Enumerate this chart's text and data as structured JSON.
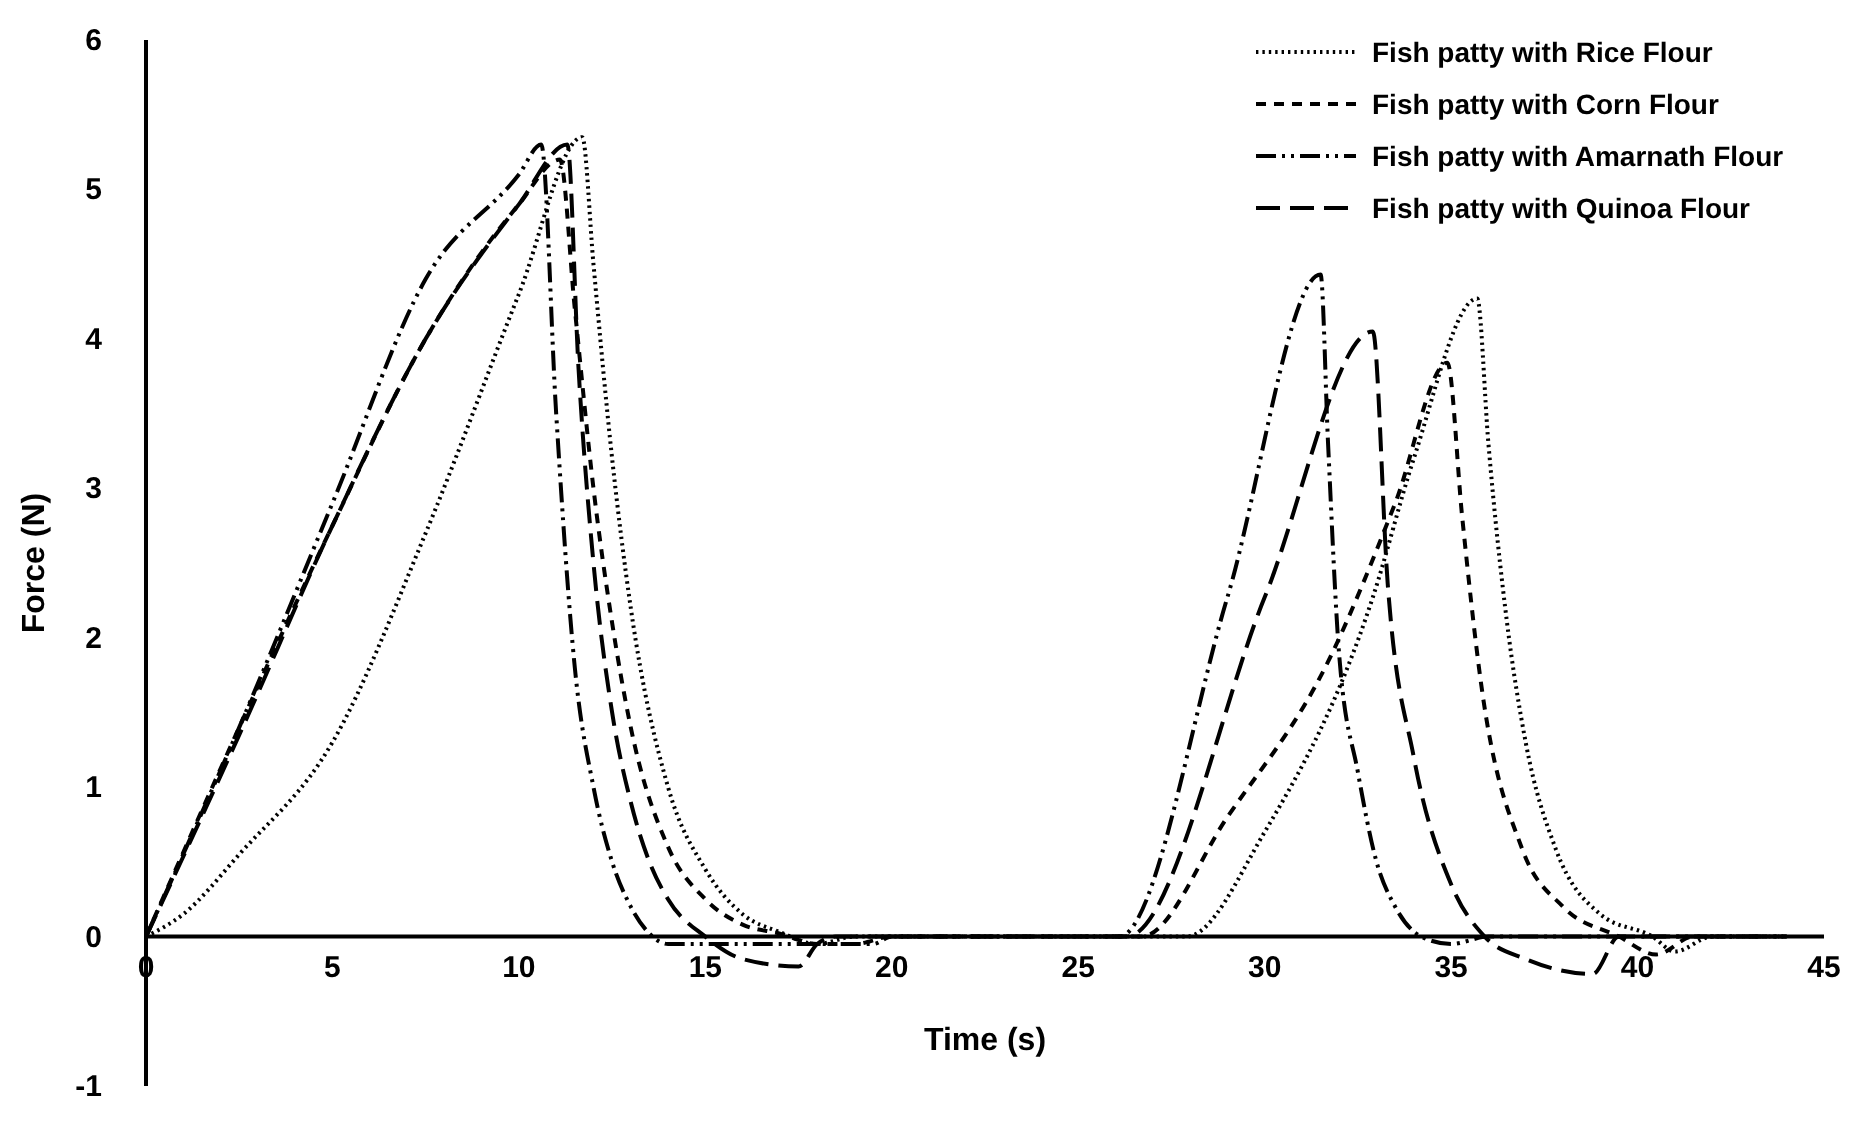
{
  "chart_data": {
    "type": "line",
    "xlabel": "Time (s)",
    "ylabel": "Force (N)",
    "xlim": [
      0,
      45
    ],
    "ylim": [
      -1,
      6
    ],
    "xticks": [
      0,
      5,
      10,
      15,
      20,
      25,
      30,
      35,
      40,
      45
    ],
    "yticks": [
      -1,
      0,
      1,
      2,
      3,
      4,
      5,
      6
    ],
    "grid": false,
    "legend": "top right",
    "series": [
      {
        "name": "Fish patty with Rice Flour",
        "color": "#000000",
        "line_style": "dotted",
        "x": [
          0,
          1,
          2.5,
          5,
          7.5,
          10,
          11.7,
          12,
          12.5,
          13,
          14,
          15,
          16,
          17,
          18,
          19,
          26,
          27.9,
          30,
          32.9,
          34,
          35.7,
          36,
          36.5,
          37,
          37.8,
          39,
          40.4,
          41,
          42,
          44
        ],
        "values": [
          0,
          0.15,
          0.55,
          1.3,
          2.7,
          4.3,
          5.35,
          4.5,
          3.2,
          2.2,
          1,
          0.45,
          0.15,
          0.03,
          -0.05,
          0,
          0,
          0,
          0.7,
          2.27,
          3.2,
          4.27,
          3.3,
          2.1,
          1.3,
          0.59,
          0.15,
          0,
          -0.1,
          0,
          0
        ]
      },
      {
        "name": "Fish patty with Corn Flour",
        "color": "#000000",
        "line_style": "dashed",
        "x": [
          0,
          2.5,
          5,
          7.5,
          10,
          11.1,
          11.5,
          12,
          12.5,
          13,
          14,
          15,
          16,
          17,
          18,
          19,
          20,
          26,
          26.7,
          29,
          31.7,
          33.5,
          34.9,
          35.3,
          35.8,
          36.9,
          38,
          39.5,
          40.5,
          41.5,
          44
        ],
        "values": [
          0,
          1.4,
          2.75,
          4,
          4.9,
          5.2,
          4.2,
          3,
          2.1,
          1.4,
          0.6,
          0.25,
          0.08,
          0.02,
          -0.05,
          -0.05,
          0,
          0,
          0,
          0.8,
          1.84,
          2.9,
          3.84,
          2.8,
          1.7,
          0.59,
          0.2,
          0,
          -0.12,
          0,
          0
        ]
      },
      {
        "name": "Fish patty with Amarnath Flour",
        "color": "#000000",
        "line_style": "dashdot",
        "x": [
          0,
          2.5,
          5,
          7.5,
          10,
          10.6,
          11,
          11.5,
          12,
          12.5,
          13,
          13.5,
          14,
          16,
          18,
          19.5,
          20,
          26,
          26.1,
          29,
          31.5,
          31.7,
          32,
          32.5,
          33,
          33.5,
          34.2,
          35,
          36,
          44
        ],
        "values": [
          0,
          1.4,
          2.9,
          4.4,
          5.1,
          5.3,
          3.5,
          1.8,
          1,
          0.5,
          0.2,
          0.02,
          -0.05,
          -0.05,
          -0.05,
          -0.05,
          0,
          0,
          0,
          2.27,
          4.43,
          3.3,
          1.88,
          1.1,
          0.5,
          0.2,
          0,
          -0.05,
          0,
          0
        ]
      },
      {
        "name": "Fish patty with Quinoa Flour",
        "color": "#000000",
        "line_style": "longdash",
        "x": [
          0,
          2.5,
          5,
          7.5,
          10,
          11.3,
          11.6,
          12,
          12.5,
          13,
          13.5,
          14,
          15,
          16,
          17.5,
          18,
          18.5,
          26,
          26.3,
          30,
          32.9,
          33.3,
          34,
          35,
          35.9,
          37,
          38.8,
          39.5,
          40,
          44
        ],
        "values": [
          0,
          1.35,
          2.75,
          4,
          4.9,
          5.3,
          3.8,
          2.5,
          1.5,
          0.9,
          0.5,
          0.25,
          0,
          -0.15,
          -0.2,
          -0.05,
          0,
          0,
          0,
          2.27,
          4.05,
          2.36,
          1.2,
          0.35,
          0,
          -0.15,
          -0.25,
          0,
          0,
          0
        ]
      }
    ]
  }
}
